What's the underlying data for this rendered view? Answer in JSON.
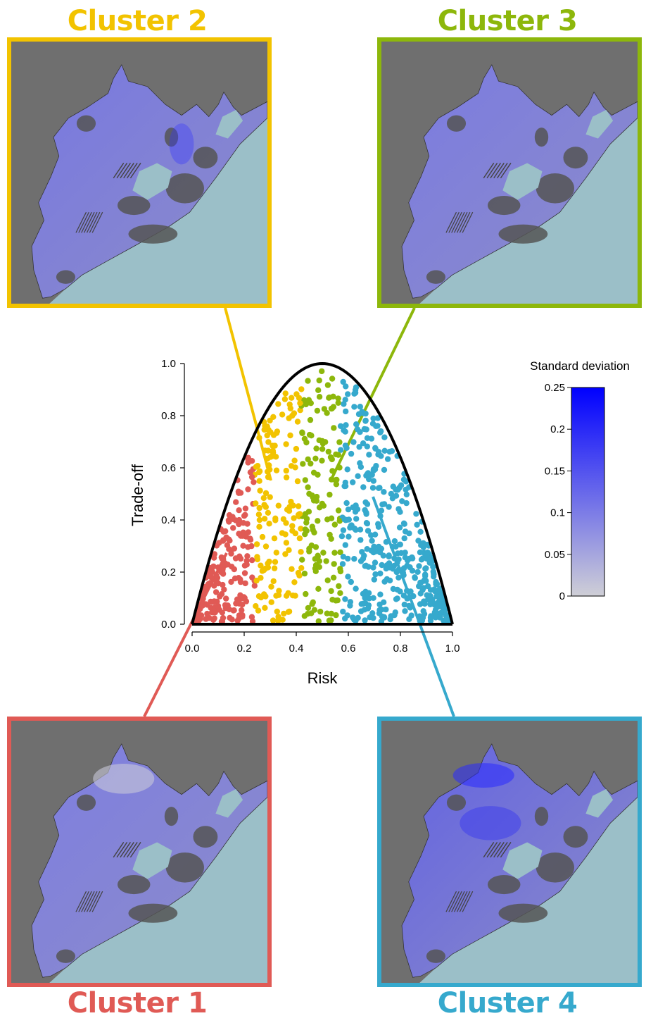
{
  "clusters": [
    {
      "id": 1,
      "title": "Cluster 1",
      "color": "#e05a55"
    },
    {
      "id": 2,
      "title": "Cluster 2",
      "color": "#f2c300"
    },
    {
      "id": 3,
      "title": "Cluster 3",
      "color": "#8db70b"
    },
    {
      "id": 4,
      "title": "Cluster 4",
      "color": "#36a9cd"
    }
  ],
  "colors": {
    "sea": "#9bbfc8",
    "land_background": "#6f6f6f",
    "curve": "#000000",
    "legend_low": "#cfcfd6",
    "legend_high": "#0000ff"
  },
  "chart_data": {
    "type": "scatter",
    "xlabel": "Risk",
    "ylabel": "Trade-off",
    "xlim": [
      0,
      1
    ],
    "ylim": [
      0,
      1
    ],
    "xticks": [
      "0.0",
      "0.2",
      "0.4",
      "0.6",
      "0.8",
      "1.0"
    ],
    "yticks": [
      "0.0",
      "0.2",
      "0.4",
      "0.6",
      "0.8",
      "1.0"
    ],
    "boundary": "y = 4x(1-x)",
    "series": [
      {
        "name": "Cluster 1",
        "x_range": [
          0.0,
          0.24
        ],
        "color": "#e05a55"
      },
      {
        "name": "Cluster 2",
        "x_range": [
          0.24,
          0.42
        ],
        "color": "#f2c300"
      },
      {
        "name": "Cluster 3",
        "x_range": [
          0.42,
          0.57
        ],
        "color": "#8db70b"
      },
      {
        "name": "Cluster 4",
        "x_range": [
          0.57,
          1.0
        ],
        "color": "#36a9cd"
      }
    ],
    "point_count": 900,
    "colorbar": {
      "title": "Standard deviation",
      "range": [
        0,
        0.25
      ],
      "ticks": [
        "0",
        "0.05",
        "0.1",
        "0.15",
        "0.2",
        "0.25"
      ]
    }
  }
}
